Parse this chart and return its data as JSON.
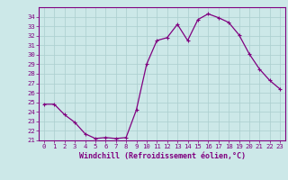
{
  "x": [
    0,
    1,
    2,
    3,
    4,
    5,
    6,
    7,
    8,
    9,
    10,
    11,
    12,
    13,
    14,
    15,
    16,
    17,
    18,
    19,
    20,
    21,
    22,
    23
  ],
  "y": [
    24.8,
    24.8,
    23.7,
    22.9,
    21.7,
    21.2,
    21.3,
    21.2,
    21.3,
    24.2,
    29.0,
    31.5,
    31.8,
    33.2,
    31.5,
    33.7,
    34.3,
    33.9,
    33.4,
    32.1,
    30.1,
    28.5,
    27.3,
    26.4
  ],
  "line_color": "#800080",
  "marker": "+",
  "marker_size": 3.5,
  "marker_linewidth": 0.8,
  "bg_color": "#cce8e8",
  "grid_color": "#aacece",
  "axis_color": "#800080",
  "spine_color": "#800080",
  "xlabel": "Windchill (Refroidissement éolien,°C)",
  "xlim": [
    -0.5,
    23.5
  ],
  "ylim": [
    21,
    35
  ],
  "yticks": [
    21,
    22,
    23,
    24,
    25,
    26,
    27,
    28,
    29,
    30,
    31,
    32,
    33,
    34
  ],
  "xticks": [
    0,
    1,
    2,
    3,
    4,
    5,
    6,
    7,
    8,
    9,
    10,
    11,
    12,
    13,
    14,
    15,
    16,
    17,
    18,
    19,
    20,
    21,
    22,
    23
  ],
  "tick_fontsize": 5.2,
  "xlabel_fontsize": 6.0,
  "linewidth": 0.9
}
